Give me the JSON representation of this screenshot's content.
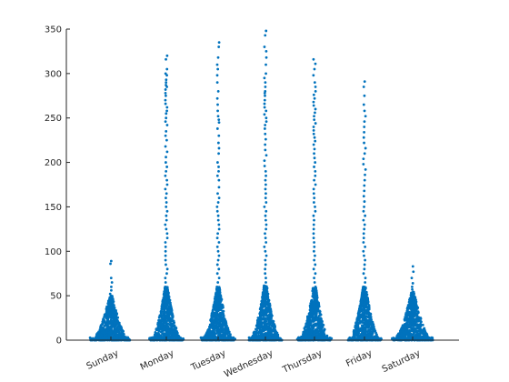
{
  "chart_data": {
    "type": "scatter",
    "subtype": "swarm",
    "title": "",
    "xlabel": "",
    "ylabel": "",
    "categories": [
      "Sunday",
      "Monday",
      "Tuesday",
      "Wednesday",
      "Thursday",
      "Friday",
      "Saturday"
    ],
    "ylim": [
      0,
      350
    ],
    "yticks": [
      0,
      50,
      100,
      150,
      200,
      250,
      300,
      350
    ],
    "grid": false,
    "legend": "none",
    "color": "#0072BD",
    "series": [
      {
        "category": "Sunday",
        "max": 89,
        "core_max": 50,
        "values": [
          89,
          86,
          70,
          65,
          60,
          56,
          52,
          50,
          47,
          45,
          43,
          41,
          40,
          38,
          37,
          36,
          35,
          34,
          33,
          32,
          31,
          30,
          29,
          28,
          27,
          26,
          25,
          24,
          23,
          22,
          21,
          20,
          19,
          18,
          17,
          16,
          15,
          14,
          13,
          12,
          11,
          10,
          9,
          8,
          7,
          6,
          5,
          4,
          3,
          2,
          1
        ]
      },
      {
        "category": "Monday",
        "max": 320,
        "core_max": 60,
        "values": [
          320,
          316,
          305,
          300,
          298,
          293,
          290,
          287,
          285,
          282,
          278,
          275,
          270,
          266,
          262,
          258,
          255,
          250,
          246,
          242,
          235,
          230,
          225,
          218,
          212,
          206,
          200,
          195,
          190,
          185,
          180,
          175,
          170,
          165,
          160,
          155,
          150,
          145,
          140,
          135,
          130,
          125,
          120,
          115,
          110,
          105,
          100,
          95,
          90,
          85,
          80,
          75,
          70,
          65,
          60
        ]
      },
      {
        "category": "Tuesday",
        "max": 335,
        "core_max": 60,
        "values": [
          335,
          330,
          318,
          310,
          305,
          298,
          290,
          280,
          272,
          265,
          258,
          252,
          248,
          245,
          238,
          230,
          222,
          216,
          210,
          200,
          195,
          190,
          185,
          180,
          172,
          165,
          160,
          155,
          150,
          145,
          140,
          135,
          130,
          125,
          120,
          115,
          110,
          105,
          100,
          95,
          90,
          85,
          80,
          75,
          70,
          65,
          60
        ]
      },
      {
        "category": "Wednesday",
        "max": 348,
        "core_max": 62,
        "values": [
          348,
          343,
          330,
          325,
          318,
          310,
          300,
          295,
          290,
          285,
          280,
          278,
          275,
          270,
          266,
          262,
          258,
          254,
          250,
          246,
          242,
          238,
          232,
          226,
          220,
          214,
          208,
          202,
          196,
          190,
          185,
          180,
          175,
          170,
          165,
          160,
          155,
          150,
          145,
          140,
          135,
          130,
          125,
          120,
          115,
          110,
          105,
          100,
          95,
          90,
          85,
          80,
          75,
          70,
          65
        ]
      },
      {
        "category": "Thursday",
        "max": 316,
        "core_max": 60,
        "values": [
          316,
          311,
          305,
          298,
          290,
          285,
          280,
          276,
          272,
          268,
          264,
          260,
          256,
          252,
          248,
          244,
          240,
          236,
          232,
          228,
          224,
          220,
          215,
          210,
          205,
          200,
          195,
          190,
          185,
          180,
          175,
          170,
          165,
          160,
          155,
          150,
          145,
          140,
          135,
          130,
          125,
          120,
          115,
          110,
          105,
          100,
          95,
          90,
          85,
          80,
          75,
          70,
          65,
          60
        ]
      },
      {
        "category": "Friday",
        "max": 291,
        "core_max": 60,
        "values": [
          291,
          285,
          275,
          265,
          258,
          252,
          246,
          240,
          234,
          228,
          222,
          216,
          210,
          204,
          198,
          192,
          186,
          180,
          174,
          168,
          162,
          156,
          150,
          145,
          140,
          135,
          130,
          125,
          120,
          115,
          110,
          105,
          100,
          95,
          90,
          85,
          80,
          75,
          70,
          65,
          60
        ]
      },
      {
        "category": "Saturday",
        "max": 83,
        "core_max": 55,
        "values": [
          83,
          77,
          70,
          64,
          60,
          57,
          55,
          53,
          51,
          49,
          47,
          45,
          43,
          41,
          40,
          38,
          37,
          36,
          35,
          34,
          33,
          32,
          31,
          30,
          29,
          28,
          27,
          26,
          25,
          24,
          23,
          22,
          21,
          20,
          19,
          18,
          17,
          16,
          15,
          14,
          13,
          12,
          11,
          10,
          9,
          8,
          7,
          6,
          5,
          4,
          3,
          2,
          1
        ]
      }
    ]
  }
}
